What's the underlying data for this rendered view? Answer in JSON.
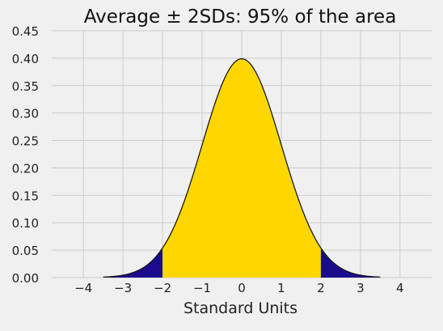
{
  "chart_data": {
    "type": "area",
    "title": "Average ± 2SDs: 95% of the area",
    "xlabel": "Standard Units",
    "ylabel": "",
    "xlim": [
      -4.8,
      4.8
    ],
    "ylim": [
      0,
      0.45
    ],
    "x_ticks": [
      -4,
      -3,
      -2,
      -1,
      0,
      1,
      2,
      3,
      4
    ],
    "x_tick_labels": [
      "−4",
      "−3",
      "−2",
      "−1",
      "0",
      "1",
      "2",
      "3",
      "4"
    ],
    "y_ticks": [
      0.0,
      0.05,
      0.1,
      0.15,
      0.2,
      0.25,
      0.3,
      0.35,
      0.4,
      0.45
    ],
    "y_tick_labels": [
      "0.00",
      "0.05",
      "0.10",
      "0.15",
      "0.20",
      "0.25",
      "0.30",
      "0.35",
      "0.40",
      "0.45"
    ],
    "grid": true,
    "curve": {
      "kind": "standard normal density",
      "x_range": [
        -3.5,
        3.5
      ],
      "points": [
        {
          "x": -3.5,
          "y": 0.001
        },
        {
          "x": -3,
          "y": 0.004
        },
        {
          "x": -2.5,
          "y": 0.018
        },
        {
          "x": -2,
          "y": 0.054
        },
        {
          "x": -1.5,
          "y": 0.13
        },
        {
          "x": -1,
          "y": 0.242
        },
        {
          "x": -0.5,
          "y": 0.352
        },
        {
          "x": 0,
          "y": 0.399
        },
        {
          "x": 0.5,
          "y": 0.352
        },
        {
          "x": 1,
          "y": 0.242
        },
        {
          "x": 1.5,
          "y": 0.13
        },
        {
          "x": 2,
          "y": 0.054
        },
        {
          "x": 2.5,
          "y": 0.018
        },
        {
          "x": 3,
          "y": 0.004
        },
        {
          "x": 3.5,
          "y": 0.001
        }
      ]
    },
    "regions": [
      {
        "from": -3.5,
        "to": -2,
        "color": "#1a0a8c"
      },
      {
        "from": -2,
        "to": 2,
        "color": "#ffd700"
      },
      {
        "from": 2,
        "to": 3.5,
        "color": "#1a0a8c"
      }
    ],
    "colors": {
      "background": "#f0f0f0",
      "grid": "#cbcbcb",
      "curve": "#1a1a1a",
      "center": "#ffd700",
      "tails": "#1a0a8c"
    }
  }
}
